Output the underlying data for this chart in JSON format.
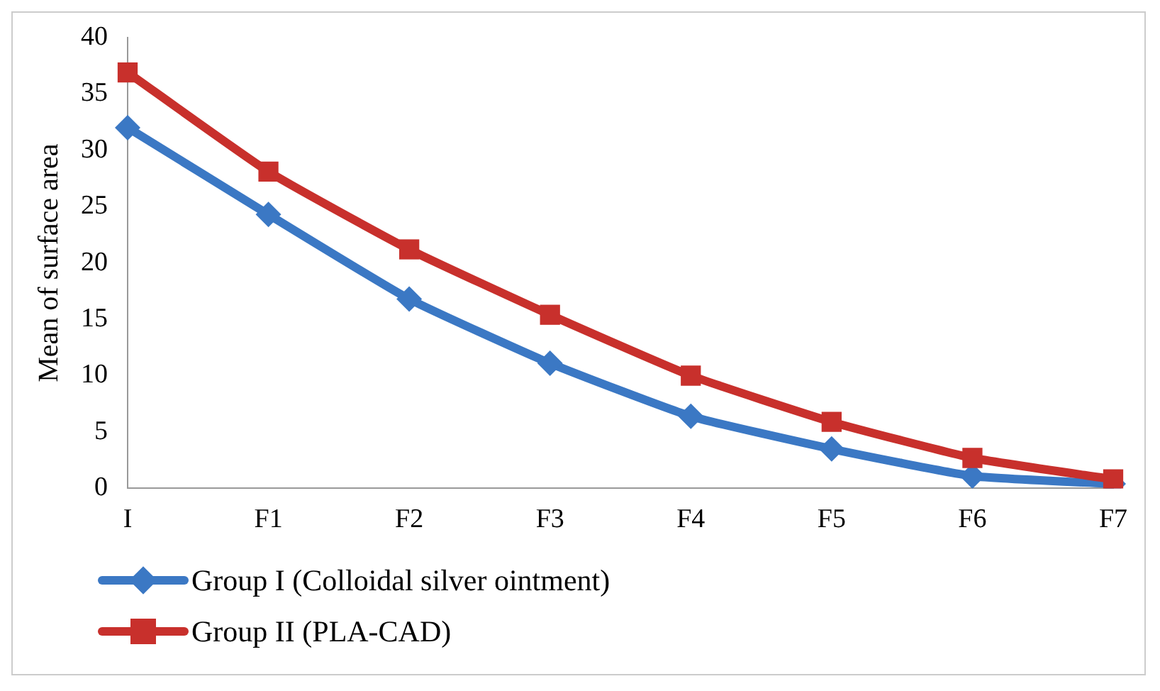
{
  "chart_data": {
    "type": "line",
    "ylabel": "Mean of surface area",
    "categories": [
      "I",
      "F1",
      "F2",
      "F3",
      "F4",
      "F5",
      "F6",
      "F7"
    ],
    "series": [
      {
        "name": "Group I (Colloidal silver ointment)",
        "color": "#3b78c4",
        "marker": "diamond",
        "values": [
          32,
          24.3,
          16.8,
          11.1,
          6.4,
          3.5,
          1.1,
          0.4
        ]
      },
      {
        "name": "Group II (PLA-CAD)",
        "color": "#c8302c",
        "marker": "square",
        "values": [
          36.9,
          28.1,
          21.2,
          15.4,
          10,
          5.9,
          2.7,
          0.8
        ]
      }
    ],
    "ylim": [
      0,
      40
    ],
    "yticks": [
      0,
      5,
      10,
      15,
      20,
      25,
      30,
      35,
      40
    ],
    "grid": false,
    "legend": "bottom left"
  }
}
